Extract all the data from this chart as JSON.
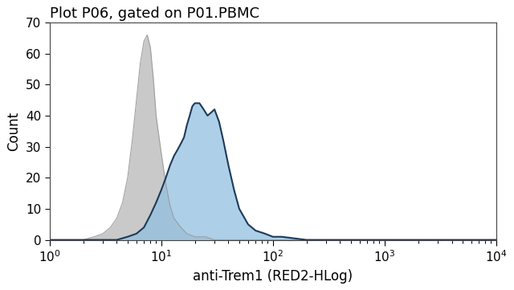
{
  "title": "Plot P06, gated on P01.PBMC",
  "xlabel": "anti-Trem1 (RED2-HLog)",
  "ylabel": "Count",
  "ylim": [
    0,
    70
  ],
  "yticks": [
    0,
    10,
    20,
    30,
    40,
    50,
    60,
    70
  ],
  "title_fontsize": 13,
  "label_fontsize": 12,
  "tick_fontsize": 11,
  "gray_color": "#c0c0c0",
  "gray_edge_color": "#999999",
  "blue_fill_color": "#92c0e0",
  "blue_edge_color": "#1c3a5a",
  "gray_alpha": 0.85,
  "blue_alpha": 0.75,
  "gray_x": [
    1.0,
    1.5,
    2.0,
    2.5,
    3.0,
    3.5,
    4.0,
    4.5,
    5.0,
    5.5,
    6.0,
    6.5,
    7.0,
    7.5,
    8.0,
    8.5,
    9.0,
    10.0,
    11.0,
    12.0,
    13.0,
    15.0,
    17.0,
    20.0,
    25.0,
    30.0,
    40.0,
    60.0,
    100.0,
    1000.0,
    10000.0
  ],
  "gray_y": [
    0,
    0,
    0,
    1,
    2,
    4,
    7,
    12,
    20,
    32,
    45,
    57,
    64,
    66,
    62,
    52,
    40,
    28,
    18,
    11,
    7,
    4,
    2,
    1,
    1,
    0,
    0,
    0,
    0,
    0,
    0
  ],
  "blue_x": [
    1.0,
    2.0,
    3.0,
    4.0,
    5.0,
    6.0,
    7.0,
    8.0,
    9.0,
    10.0,
    11.0,
    12.0,
    13.0,
    14.0,
    15.0,
    16.0,
    17.0,
    18.0,
    19.0,
    20.0,
    22.0,
    24.0,
    26.0,
    28.0,
    30.0,
    33.0,
    36.0,
    40.0,
    45.0,
    50.0,
    60.0,
    70.0,
    85.0,
    100.0,
    120.0,
    200.0,
    500.0,
    10000.0
  ],
  "blue_y": [
    0,
    0,
    0,
    0,
    1,
    2,
    4,
    8,
    12,
    16,
    20,
    24,
    27,
    29,
    31,
    33,
    37,
    40,
    43,
    44,
    44,
    42,
    40,
    41,
    42,
    38,
    32,
    24,
    16,
    10,
    5,
    3,
    2,
    1,
    1,
    0,
    0,
    0
  ]
}
